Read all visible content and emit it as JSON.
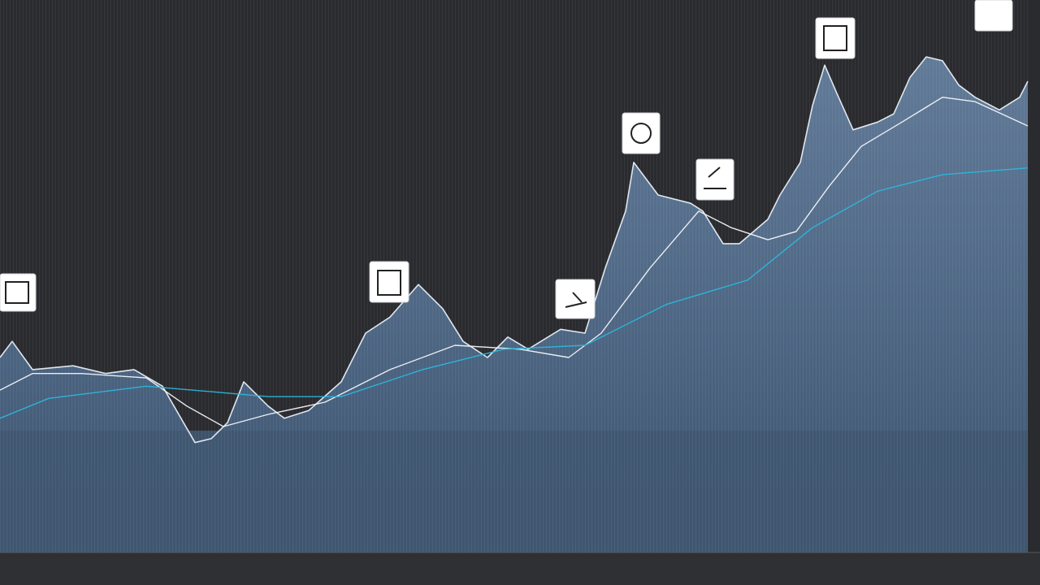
{
  "chart_data": {
    "type": "line",
    "xlim": [
      0,
      1280
    ],
    "ylim": [
      0,
      100
    ],
    "series": [
      {
        "color": "#e8eef6",
        "fill": "#4a6788",
        "x": [
          0,
          15,
          40,
          90,
          130,
          165,
          200,
          240,
          260,
          280,
          300,
          330,
          350,
          380,
          420,
          450,
          480,
          515,
          545,
          570,
          600,
          625,
          650,
          690,
          720,
          745,
          770,
          780,
          810,
          850,
          865,
          890,
          910,
          945,
          960,
          985,
          1000,
          1015,
          1030,
          1050,
          1080,
          1100,
          1120,
          1140,
          1160,
          1180,
          1200,
          1230,
          1255,
          1265
        ],
        "values": [
          35.3,
          38.2,
          33.1,
          33.8,
          32.4,
          33.1,
          30.1,
          19.9,
          20.6,
          23.5,
          30.9,
          26.5,
          24.3,
          25.7,
          30.9,
          39.7,
          42.6,
          48.5,
          44.1,
          38.2,
          35.3,
          39.0,
          36.8,
          40.4,
          39.7,
          51.5,
          61.8,
          70.6,
          64.7,
          63.2,
          61.8,
          55.9,
          55.9,
          60.3,
          64.7,
          70.6,
          80.9,
          88.2,
          83.1,
          76.5,
          77.9,
          79.4,
          86.0,
          89.7,
          89.0,
          84.6,
          82.4,
          80.1,
          82.4,
          85.3
        ]
      },
      {
        "color": "#f2f5f9",
        "x": [
          0,
          40,
          100,
          180,
          230,
          275,
          330,
          400,
          480,
          560,
          640,
          700,
          740,
          800,
          860,
          900,
          945,
          980,
          1020,
          1060,
          1110,
          1160,
          1200,
          1265
        ],
        "values": [
          29.4,
          32.4,
          32.4,
          31.6,
          26.5,
          22.8,
          25.0,
          27.2,
          33.1,
          37.5,
          36.8,
          35.3,
          39.7,
          51.5,
          61.8,
          58.8,
          56.6,
          58.1,
          66.2,
          73.5,
          77.9,
          82.4,
          81.6,
          77.2
        ]
      },
      {
        "color": "#2bb7dc",
        "x": [
          0,
          60,
          180,
          260,
          330,
          420,
          520,
          620,
          720,
          820,
          920,
          1000,
          1080,
          1160,
          1265
        ],
        "values": [
          24.3,
          27.9,
          30.1,
          29.1,
          28.2,
          28.2,
          33.1,
          36.8,
          37.5,
          44.9,
          49.3,
          58.8,
          65.4,
          68.4,
          69.6
        ]
      }
    ]
  }
}
